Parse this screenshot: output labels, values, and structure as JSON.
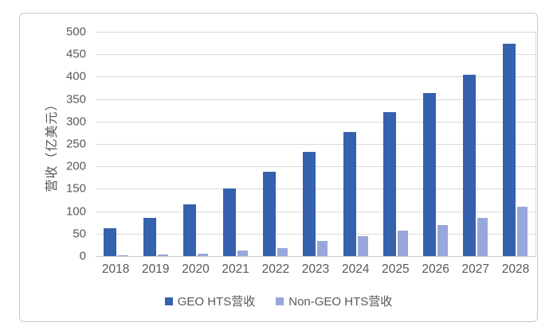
{
  "chart_data": {
    "type": "bar",
    "title": "",
    "categories": [
      "2018",
      "2019",
      "2020",
      "2021",
      "2022",
      "2023",
      "2024",
      "2025",
      "2026",
      "2027",
      "2028"
    ],
    "series": [
      {
        "name": "GEO HTS营收",
        "color": "#3561AD",
        "values": [
          62,
          85,
          115,
          150,
          188,
          232,
          277,
          321,
          364,
          405,
          474
        ]
      },
      {
        "name": "Non-GEO HTS营收",
        "color": "#98A7DB",
        "values": [
          2,
          3,
          6,
          12,
          18,
          33,
          45,
          57,
          70,
          85,
          110
        ]
      }
    ],
    "xlabel": "",
    "ylabel": "营收（亿美元）",
    "ylim": [
      0,
      500
    ],
    "ytick_step": 50,
    "yticks": [
      "0",
      "50",
      "100",
      "150",
      "200",
      "250",
      "300",
      "350",
      "400",
      "450",
      "500"
    ],
    "grid": true,
    "legend_position": "bottom"
  },
  "colors": {
    "geo_bar": "#3561AD",
    "non_geo_bar": "#98A7DB",
    "gridline": "#d9d9d9",
    "axis_text": "#595959",
    "card_border": "#c6c6c6",
    "background": "#ffffff"
  }
}
